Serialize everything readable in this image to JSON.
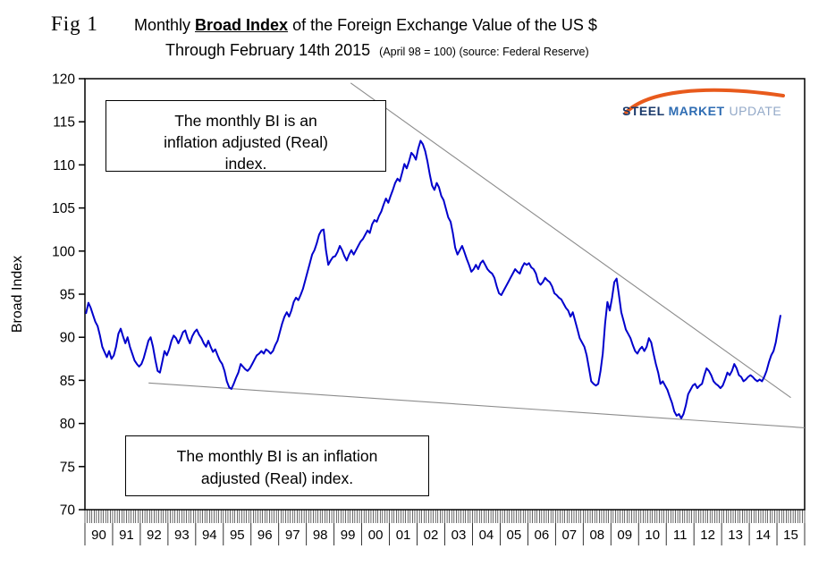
{
  "figure": {
    "fig_label": "Fig 1",
    "title_prefix": "Monthly ",
    "title_emphasis": "Broad Index",
    "title_suffix": " of the Foreign Exchange Value of the US $",
    "subtitle": "Through February 14th 2015",
    "subtitle_note": "(April 98 = 100) (source: Federal Reserve)"
  },
  "logo": {
    "word1": "STEEL",
    "word2": "MARKET",
    "word3": "UPDATE",
    "arc_color": "#e85a1c",
    "word1_color": "#1b3a6b",
    "word2_color": "#2f6db3",
    "word3_color": "#93a9c8"
  },
  "annotations": {
    "top_box": {
      "lines": [
        "The monthly BI is an",
        "inflation adjusted (Real)",
        "index."
      ]
    },
    "bottom_box": {
      "lines": [
        "The monthly BI is an inflation",
        "adjusted (Real) index."
      ]
    }
  },
  "chart_data": {
    "type": "line",
    "title": "Monthly Broad Index of the Foreign Exchange Value of the US $ Through February 14th 2015",
    "xlabel": "",
    "ylabel": "Broad Index",
    "ylim": [
      70,
      120
    ],
    "ytick_step": 5,
    "x_axis_years": [
      1990,
      2016
    ],
    "year_labels": [
      "90",
      "91",
      "92",
      "93",
      "94",
      "95",
      "96",
      "97",
      "98",
      "99",
      "00",
      "01",
      "02",
      "03",
      "04",
      "05",
      "06",
      "07",
      "08",
      "09",
      "10",
      "11",
      "12",
      "13",
      "14",
      "15"
    ],
    "grid": false,
    "series": [
      {
        "name": "Broad Index (Real, April 98 = 100)",
        "color": "#0000cc",
        "start": "1990-01",
        "end": "2015-02",
        "monthly_values": [
          92.8,
          94.0,
          93.4,
          92.6,
          91.8,
          91.3,
          90.2,
          88.9,
          88.3,
          87.7,
          88.4,
          87.5,
          87.9,
          88.9,
          90.4,
          91.0,
          90.1,
          89.3,
          90.0,
          88.9,
          88.1,
          87.3,
          86.9,
          86.6,
          86.9,
          87.6,
          88.6,
          89.6,
          90.0,
          88.9,
          87.4,
          86.1,
          85.9,
          87.1,
          88.4,
          87.9,
          88.6,
          89.6,
          90.2,
          89.9,
          89.3,
          89.9,
          90.6,
          90.8,
          89.9,
          89.3,
          90.1,
          90.6,
          90.9,
          90.3,
          89.9,
          89.3,
          88.9,
          89.6,
          88.9,
          88.3,
          88.6,
          87.9,
          87.3,
          86.9,
          86.1,
          84.9,
          84.2,
          84.0,
          84.6,
          85.3,
          85.9,
          86.9,
          86.6,
          86.3,
          86.1,
          86.4,
          86.9,
          87.4,
          87.9,
          88.1,
          88.4,
          88.1,
          88.6,
          88.4,
          88.1,
          88.4,
          89.1,
          89.6,
          90.6,
          91.6,
          92.4,
          92.9,
          92.4,
          93.1,
          94.1,
          94.6,
          94.3,
          94.9,
          95.6,
          96.6,
          97.6,
          98.6,
          99.6,
          100.1,
          100.9,
          101.9,
          102.4,
          102.5,
          100.1,
          98.4,
          98.9,
          99.3,
          99.4,
          99.9,
          100.6,
          100.1,
          99.4,
          98.9,
          99.6,
          100.1,
          99.6,
          100.1,
          100.6,
          101.1,
          101.4,
          101.9,
          102.4,
          102.1,
          103.1,
          103.6,
          103.4,
          104.1,
          104.6,
          105.4,
          106.1,
          105.6,
          106.4,
          107.1,
          107.9,
          108.4,
          108.1,
          109.1,
          110.1,
          109.6,
          110.4,
          111.4,
          111.1,
          110.6,
          111.9,
          112.8,
          112.4,
          111.6,
          110.4,
          108.9,
          107.6,
          107.1,
          107.9,
          107.4,
          106.4,
          105.9,
          104.9,
          103.9,
          103.4,
          102.1,
          100.4,
          99.6,
          100.1,
          100.6,
          99.9,
          99.1,
          98.4,
          97.6,
          97.9,
          98.4,
          97.9,
          98.6,
          98.9,
          98.4,
          97.9,
          97.6,
          97.4,
          96.9,
          95.9,
          95.1,
          94.9,
          95.4,
          95.9,
          96.4,
          96.9,
          97.4,
          97.9,
          97.6,
          97.4,
          98.1,
          98.6,
          98.4,
          98.6,
          98.1,
          97.9,
          97.4,
          96.4,
          96.1,
          96.4,
          96.9,
          96.6,
          96.4,
          95.9,
          95.1,
          94.9,
          94.6,
          94.4,
          93.9,
          93.4,
          93.1,
          92.4,
          92.9,
          91.9,
          90.9,
          89.9,
          89.4,
          88.9,
          87.9,
          86.4,
          84.9,
          84.6,
          84.4,
          84.6,
          86.1,
          88.1,
          91.6,
          94.1,
          93.1,
          94.6,
          96.4,
          96.8,
          94.9,
          92.9,
          91.9,
          90.9,
          90.4,
          89.9,
          89.1,
          88.4,
          88.1,
          88.6,
          88.9,
          88.4,
          88.9,
          89.9,
          89.4,
          88.1,
          86.9,
          85.9,
          84.6,
          84.9,
          84.4,
          83.9,
          83.1,
          82.4,
          81.4,
          80.9,
          81.1,
          80.6,
          81.1,
          82.1,
          83.4,
          83.9,
          84.4,
          84.6,
          84.1,
          84.4,
          84.6,
          85.6,
          86.4,
          86.1,
          85.6,
          84.9,
          84.6,
          84.4,
          84.1,
          84.4,
          85.1,
          85.9,
          85.6,
          86.1,
          86.9,
          86.4,
          85.6,
          85.4,
          84.9,
          85.1,
          85.4,
          85.6,
          85.4,
          85.1,
          84.9,
          85.1,
          84.9,
          85.4,
          86.1,
          87.1,
          87.9,
          88.4,
          89.4,
          91.0,
          92.5
        ]
      }
    ],
    "trendlines": [
      {
        "name": "upper-trendline",
        "color": "#8c8c8c",
        "from": [
          1999.6,
          119.5
        ],
        "to": [
          2015.5,
          83.0
        ]
      },
      {
        "name": "lower-trendline",
        "color": "#8c8c8c",
        "from": [
          1992.3,
          84.7
        ],
        "to": [
          2016.0,
          79.5
        ]
      }
    ]
  }
}
